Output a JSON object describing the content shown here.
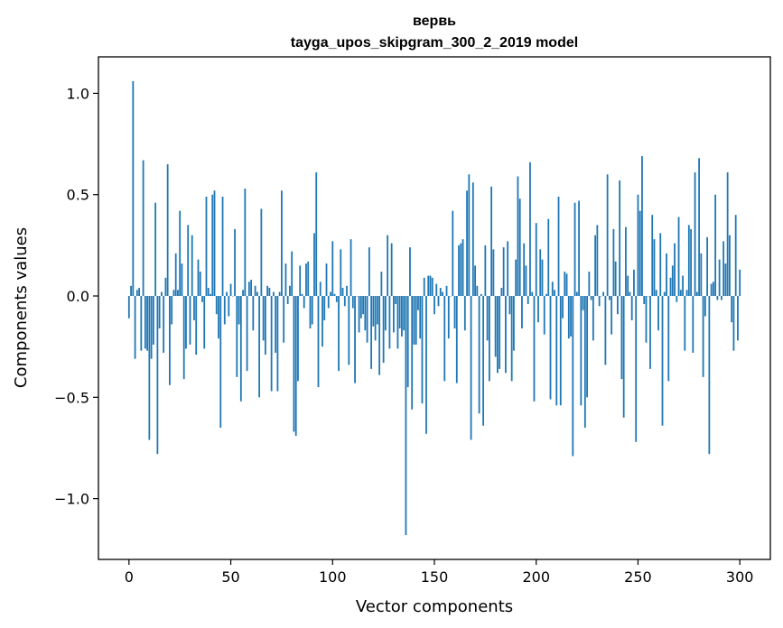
{
  "chart_data": {
    "type": "bar",
    "title": "вервь",
    "subtitle": "tayga_upos_skipgram_300_2_2019 model",
    "xlabel": "Vector components",
    "ylabel": "Components values",
    "xlim": [
      -15,
      315
    ],
    "ylim": [
      -1.3,
      1.18
    ],
    "xticks": [
      0,
      50,
      100,
      150,
      200,
      250,
      300
    ],
    "xtick_labels": [
      "0",
      "50",
      "100",
      "150",
      "200",
      "250",
      "300"
    ],
    "yticks": [
      -1.0,
      -0.5,
      0.0,
      0.5,
      1.0
    ],
    "ytick_labels": [
      "−1.0",
      "−0.5",
      "0.0",
      "0.5",
      "1.0"
    ],
    "bar_color": "#1f77b4",
    "grid": false,
    "values": [
      -0.11,
      0.05,
      1.06,
      -0.31,
      0.03,
      0.04,
      -0.27,
      0.67,
      -0.26,
      -0.27,
      -0.71,
      -0.31,
      -0.24,
      0.46,
      -0.78,
      -0.16,
      0.02,
      -0.28,
      0.09,
      0.65,
      -0.44,
      -0.14,
      0.03,
      0.21,
      0.03,
      0.42,
      0.16,
      -0.41,
      -0.26,
      0.35,
      -0.24,
      0.3,
      -0.12,
      -0.29,
      0.18,
      0.12,
      -0.03,
      -0.26,
      0.49,
      0.04,
      0.01,
      0.5,
      0.52,
      -0.09,
      -0.21,
      -0.65,
      0.49,
      -0.14,
      0.02,
      -0.1,
      0.06,
      0.0,
      0.33,
      -0.4,
      -0.14,
      -0.52,
      0.03,
      0.53,
      -0.37,
      0.07,
      0.08,
      -0.17,
      0.05,
      0.02,
      -0.5,
      0.43,
      -0.22,
      -0.29,
      0.05,
      0.04,
      -0.47,
      0.02,
      -0.28,
      -0.47,
      0.02,
      0.52,
      -0.23,
      0.16,
      -0.04,
      0.05,
      0.22,
      -0.67,
      -0.69,
      -0.42,
      0.15,
      0.01,
      -0.06,
      0.16,
      0.17,
      -0.16,
      -0.14,
      0.31,
      0.61,
      -0.45,
      0.07,
      -0.25,
      -0.12,
      0.16,
      -0.06,
      0.02,
      0.27,
      0.01,
      -0.03,
      -0.37,
      0.23,
      0.04,
      -0.05,
      0.05,
      -0.34,
      0.28,
      -0.06,
      -0.43,
      0.0,
      -0.18,
      -0.11,
      -0.09,
      -0.17,
      -0.23,
      0.24,
      -0.36,
      -0.15,
      -0.22,
      -0.14,
      -0.39,
      0.12,
      -0.33,
      -0.17,
      0.3,
      -0.26,
      0.26,
      -0.18,
      -0.04,
      -0.26,
      -0.16,
      -0.2,
      -0.17,
      -1.18,
      -0.45,
      0.24,
      -0.56,
      -0.24,
      -0.24,
      -0.07,
      -0.21,
      -0.53,
      0.09,
      -0.68,
      0.1,
      0.1,
      0.09,
      -0.09,
      0.06,
      -0.05,
      0.04,
      0.02,
      -0.42,
      0.05,
      -0.21,
      0.0,
      0.42,
      -0.16,
      -0.43,
      0.25,
      0.26,
      0.28,
      -0.17,
      0.52,
      0.6,
      -0.71,
      0.56,
      0.15,
      0.05,
      -0.58,
      0.01,
      -0.64,
      0.25,
      -0.22,
      -0.42,
      0.54,
      0.23,
      -0.3,
      -0.38,
      -0.36,
      0.04,
      0.24,
      -0.38,
      0.27,
      -0.09,
      -0.42,
      -0.27,
      0.18,
      0.59,
      0.48,
      -0.16,
      0.26,
      0.15,
      -0.04,
      0.66,
      0.02,
      -0.52,
      0.36,
      -0.13,
      0.23,
      0.18,
      -0.19,
      0.01,
      0.38,
      -0.51,
      0.07,
      0.03,
      -0.54,
      0.49,
      -0.54,
      -0.11,
      0.12,
      0.11,
      -0.21,
      -0.2,
      -0.79,
      0.46,
      0.02,
      0.47,
      -0.54,
      -0.07,
      -0.65,
      -0.5,
      0.12,
      -0.02,
      -0.22,
      0.3,
      0.35,
      -0.05,
      0.0,
      0.02,
      -0.34,
      0.6,
      -0.02,
      -0.19,
      0.33,
      0.17,
      -0.09,
      0.57,
      -0.41,
      -0.6,
      0.34,
      0.1,
      0.02,
      -0.12,
      0.13,
      -0.72,
      0.5,
      0.42,
      0.69,
      -0.04,
      -0.23,
      0.0,
      -0.36,
      0.4,
      0.28,
      0.03,
      -0.17,
      0.31,
      -0.64,
      0.02,
      0.21,
      -0.42,
      0.09,
      0.15,
      0.26,
      -0.03,
      0.39,
      0.03,
      0.1,
      -0.27,
      0.03,
      0.35,
      0.33,
      -0.28,
      0.61,
      0.02,
      0.68,
      0.21,
      -0.4,
      -0.1,
      0.29,
      -0.78,
      0.06,
      0.07,
      0.5,
      -0.02,
      0.18,
      -0.02,
      0.27,
      0.16,
      0.61,
      0.3,
      -0.13,
      -0.27,
      0.4,
      -0.22,
      0.13
    ]
  }
}
